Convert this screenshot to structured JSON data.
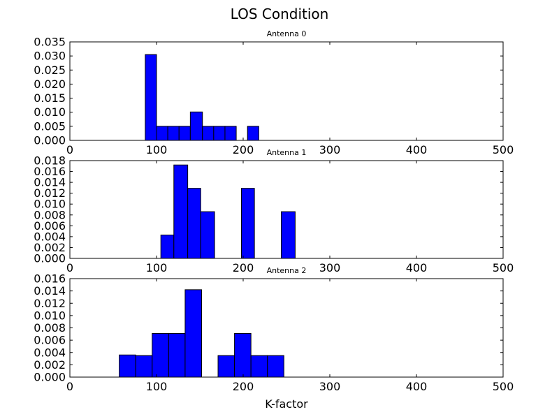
{
  "figure": {
    "title": "LOS Condition",
    "xlabel": "K-factor"
  },
  "chart_data": [
    {
      "type": "bar",
      "title": "Antenna 0",
      "xlim": [
        0,
        500
      ],
      "ylim": [
        0,
        0.035
      ],
      "xticks": [
        "0",
        "100",
        "200",
        "300",
        "400",
        "500"
      ],
      "yticks": [
        "0.000",
        "0.005",
        "0.010",
        "0.015",
        "0.020",
        "0.025",
        "0.030",
        "0.035"
      ],
      "bar_color": "#0000ff",
      "bins": [
        {
          "x0": 87,
          "x1": 100,
          "value": 0.0305
        },
        {
          "x0": 100,
          "x1": 113,
          "value": 0.005
        },
        {
          "x0": 113,
          "x1": 126,
          "value": 0.005
        },
        {
          "x0": 126,
          "x1": 139,
          "value": 0.005
        },
        {
          "x0": 139,
          "x1": 153,
          "value": 0.0101
        },
        {
          "x0": 153,
          "x1": 166,
          "value": 0.005
        },
        {
          "x0": 166,
          "x1": 179,
          "value": 0.005
        },
        {
          "x0": 179,
          "x1": 192,
          "value": 0.005
        },
        {
          "x0": 192,
          "x1": 205,
          "value": 0.0
        },
        {
          "x0": 205,
          "x1": 218,
          "value": 0.005
        }
      ]
    },
    {
      "type": "bar",
      "title": "Antenna 1",
      "xlim": [
        0,
        500
      ],
      "ylim": [
        0,
        0.018
      ],
      "xticks": [
        "0",
        "100",
        "200",
        "300",
        "400",
        "500"
      ],
      "yticks": [
        "0.000",
        "0.002",
        "0.004",
        "0.006",
        "0.008",
        "0.010",
        "0.012",
        "0.014",
        "0.016",
        "0.018"
      ],
      "bar_color": "#0000ff",
      "bins": [
        {
          "x0": 105,
          "x1": 120,
          "value": 0.0043
        },
        {
          "x0": 120,
          "x1": 136,
          "value": 0.0172
        },
        {
          "x0": 136,
          "x1": 151,
          "value": 0.0129
        },
        {
          "x0": 151,
          "x1": 167,
          "value": 0.0086
        },
        {
          "x0": 167,
          "x1": 182,
          "value": 0.0
        },
        {
          "x0": 182,
          "x1": 198,
          "value": 0.0
        },
        {
          "x0": 198,
          "x1": 213,
          "value": 0.0129
        },
        {
          "x0": 213,
          "x1": 229,
          "value": 0.0
        },
        {
          "x0": 229,
          "x1": 244,
          "value": 0.0
        },
        {
          "x0": 244,
          "x1": 260,
          "value": 0.0086
        }
      ]
    },
    {
      "type": "bar",
      "title": "Antenna 2",
      "xlim": [
        0,
        500
      ],
      "ylim": [
        0,
        0.016
      ],
      "xticks": [
        "0",
        "100",
        "200",
        "300",
        "400",
        "500"
      ],
      "yticks": [
        "0.000",
        "0.002",
        "0.004",
        "0.006",
        "0.008",
        "0.010",
        "0.012",
        "0.014",
        "0.016"
      ],
      "bar_color": "#0000ff",
      "bins": [
        {
          "x0": 57,
          "x1": 76,
          "value": 0.0036
        },
        {
          "x0": 76,
          "x1": 95,
          "value": 0.0035
        },
        {
          "x0": 95,
          "x1": 114,
          "value": 0.0071
        },
        {
          "x0": 114,
          "x1": 133,
          "value": 0.0071
        },
        {
          "x0": 133,
          "x1": 152,
          "value": 0.0142
        },
        {
          "x0": 152,
          "x1": 171,
          "value": 0.0
        },
        {
          "x0": 171,
          "x1": 190,
          "value": 0.0035
        },
        {
          "x0": 190,
          "x1": 209,
          "value": 0.0071
        },
        {
          "x0": 209,
          "x1": 228,
          "value": 0.0035
        },
        {
          "x0": 228,
          "x1": 247,
          "value": 0.0035
        }
      ]
    }
  ]
}
